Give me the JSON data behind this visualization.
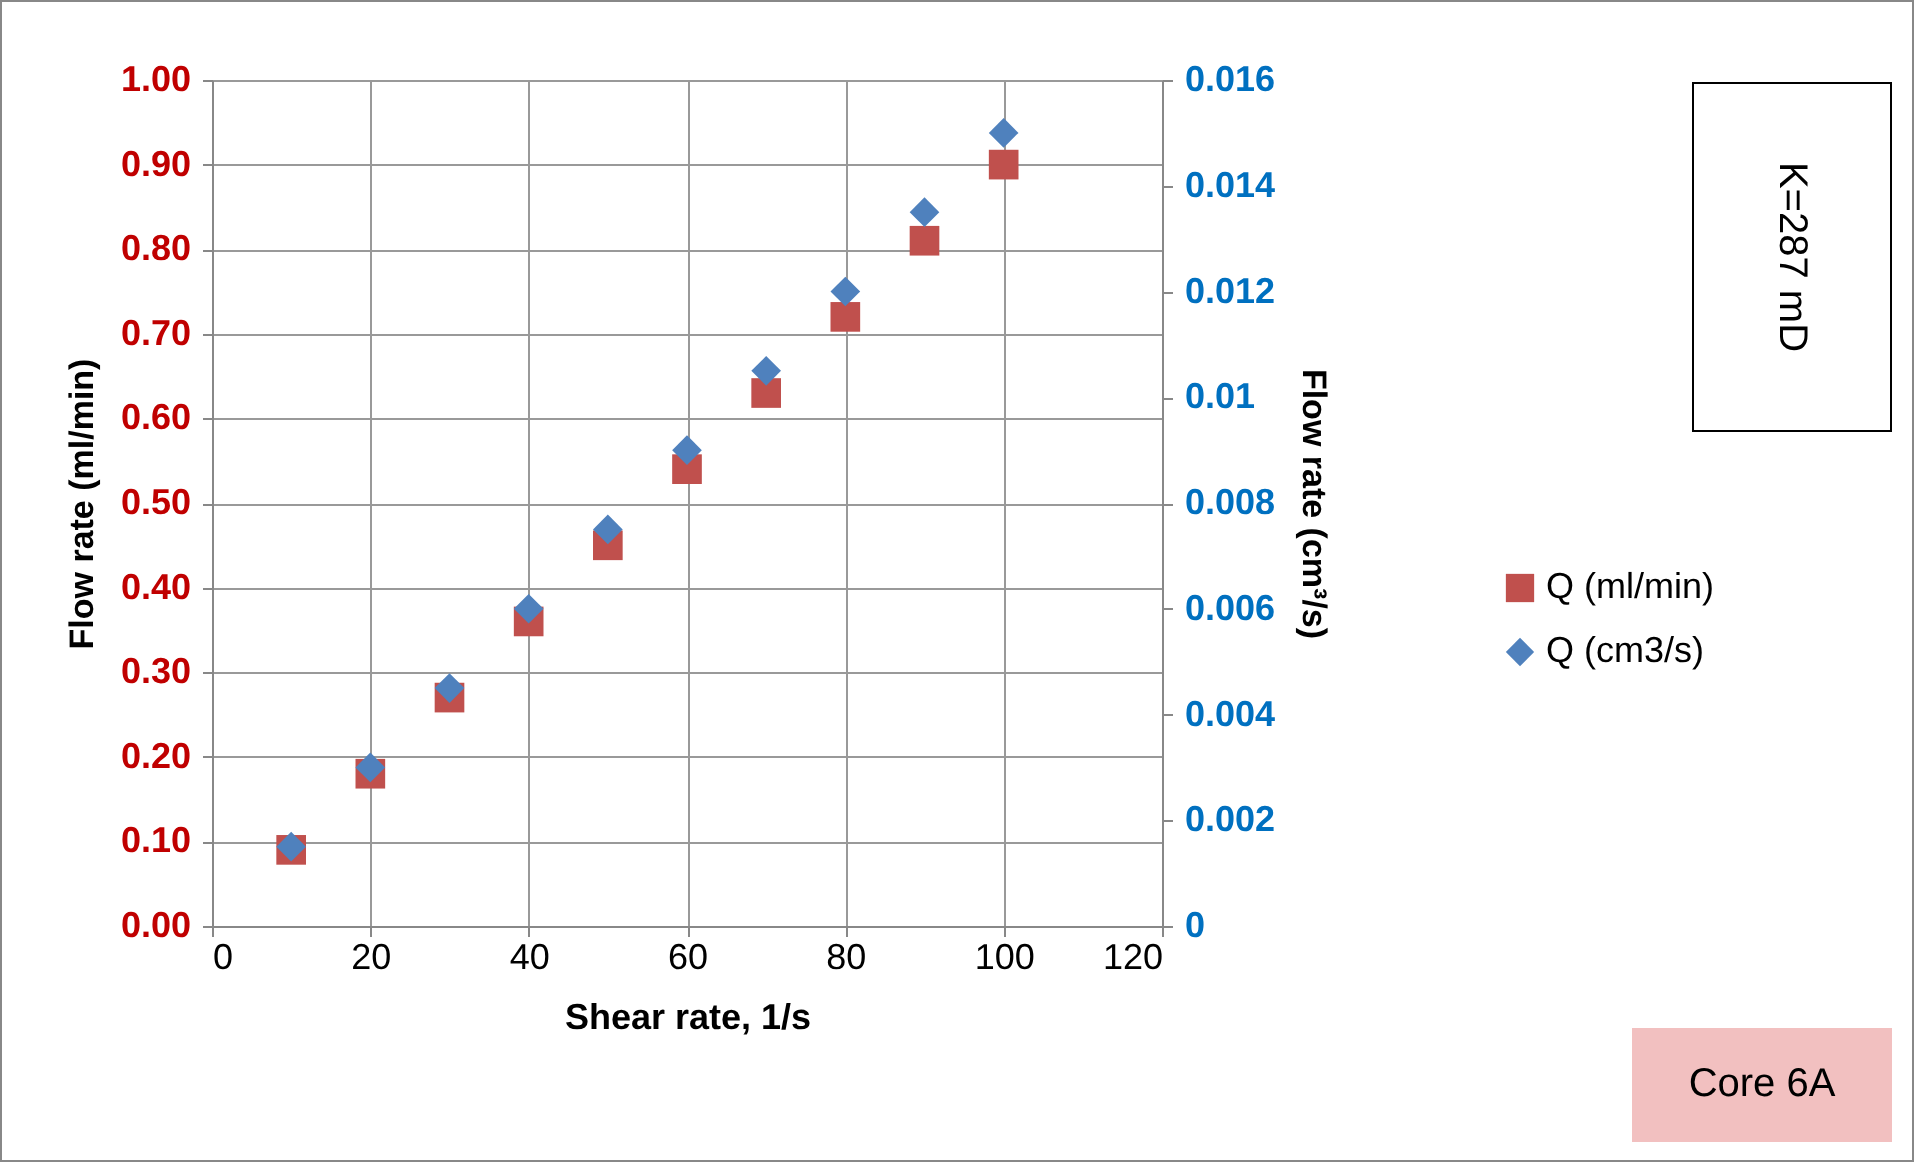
{
  "chart_data": {
    "type": "scatter",
    "xlabel": "Shear rate, 1/s",
    "ylabel": "Flow rate (ml/min)",
    "y2label": "Flow rate (cm³/s)",
    "x": [
      10,
      20,
      30,
      40,
      50,
      60,
      70,
      80,
      90,
      100
    ],
    "series": [
      {
        "name": "Q (ml/min)",
        "color": "#c0504d",
        "marker": "square",
        "values": [
          0.09,
          0.18,
          0.27,
          0.36,
          0.45,
          0.54,
          0.63,
          0.72,
          0.81,
          0.9
        ]
      },
      {
        "name": "Q (cm3/s)",
        "color": "#4f81bd",
        "marker": "diamond",
        "axis": "y2",
        "values": [
          0.0015,
          0.003,
          0.0045,
          0.006,
          0.0075,
          0.009,
          0.0105,
          0.012,
          0.0135,
          0.015
        ]
      }
    ],
    "xlim": [
      0,
      120
    ],
    "xticks": [
      0,
      20,
      40,
      60,
      80,
      100,
      120
    ],
    "ylim": [
      0,
      1
    ],
    "yticks": [
      {
        "value": 0,
        "label": "0.00"
      },
      {
        "value": 0.1,
        "label": "0.10"
      },
      {
        "value": 0.2,
        "label": "0.20"
      },
      {
        "value": 0.3,
        "label": "0.30"
      },
      {
        "value": 0.4,
        "label": "0.40"
      },
      {
        "value": 0.5,
        "label": "0.50"
      },
      {
        "value": 0.6,
        "label": "0.60"
      },
      {
        "value": 0.7,
        "label": "0.70"
      },
      {
        "value": 0.8,
        "label": "0.80"
      },
      {
        "value": 0.9,
        "label": "0.90"
      },
      {
        "value": 1,
        "label": "1.00"
      }
    ],
    "y2lim": [
      0,
      0.016
    ],
    "y2ticks": [
      0,
      0.002,
      0.004,
      0.006,
      0.008,
      0.01,
      0.012,
      0.014,
      0.016
    ],
    "grid": true,
    "legend": "right",
    "annotations": [
      "K=287 mD",
      "Core 6A"
    ]
  }
}
